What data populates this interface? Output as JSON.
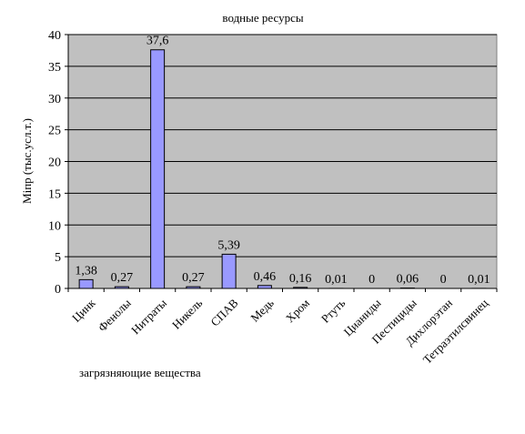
{
  "chart_data": {
    "type": "bar",
    "title": "водные ресурсы",
    "xlabel": "загрязняющие вещества",
    "ylabel": "Mіпр (тыс.усл.т.)",
    "ylim": [
      0,
      40
    ],
    "yticks": [
      0,
      5,
      10,
      15,
      20,
      25,
      30,
      35,
      40
    ],
    "grid": true,
    "legend": "none",
    "categories": [
      "Цинк",
      "Фенолы",
      "Нитраты",
      "Никель",
      "СПАВ",
      "Медь",
      "Хром",
      "Ртуть",
      "Цианиды",
      "Пестициды",
      "Дихлорэтан",
      "Тетраэтилсвинец"
    ],
    "values": [
      1.38,
      0.27,
      37.6,
      0.27,
      5.39,
      0.46,
      0.16,
      0.01,
      0,
      0.06,
      0,
      0.01
    ],
    "data_labels": [
      "1,38",
      "0,27",
      "37,6",
      "0,27",
      "5,39",
      "0,46",
      "0,16",
      "0,01",
      "0",
      "0,06",
      "0",
      "0,01"
    ],
    "colors": {
      "plot_background": "#c0c0c0",
      "bar_fill": "#9999ff",
      "bar_stroke": "#000000",
      "gridline": "#000000"
    }
  }
}
